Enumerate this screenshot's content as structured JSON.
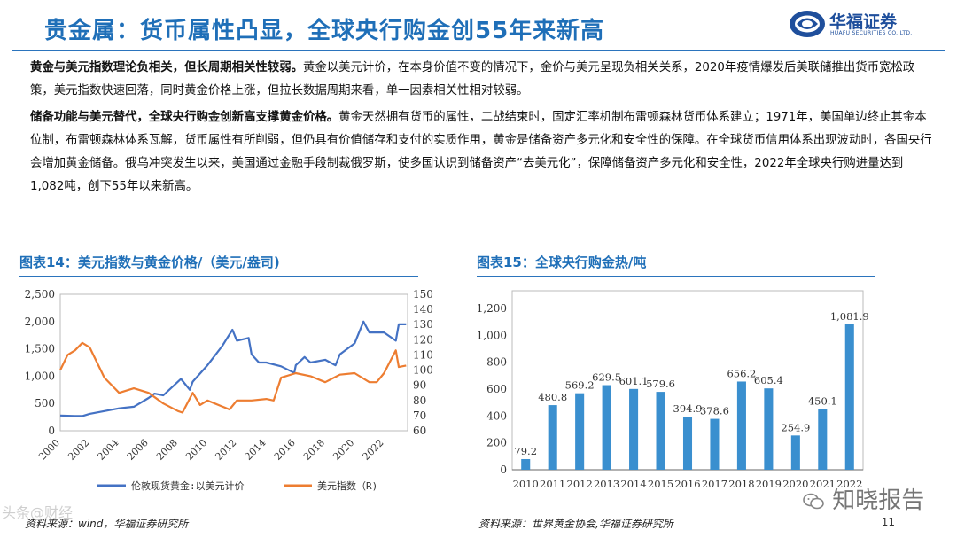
{
  "header": {
    "title": "贵金属：货币属性凸显，全球央行购金创55年来新高",
    "logo_text": "华福证券",
    "logo_sub": "HUAFU SECURITIES CO.,LTD."
  },
  "paragraphs": [
    {
      "lead": "黄金与美元指数理论负相关，但长周期相关性较弱。",
      "body": "黄金以美元计价，在本身价值不变的情况下，金价与美元呈现负相关关系，2020年疫情爆发后美联储推出货币宽松政策，美元指数快速回落，同时黄金价格上涨，但拉长数据周期来看，单一因素相关性相对较弱。"
    },
    {
      "lead": "储备功能与美元替代，全球央行购金创新高支撑黄金价格。",
      "body": "黄金天然拥有货币的属性，二战结束时，固定汇率机制布雷顿森林货币体系建立；1971年，美国单边终止其金本位制，布雷顿森林体系瓦解，货币属性有所削弱，但仍具有价值储存和支付的实质作用，黄金是储备资产多元化和安全性的保障。在全球货币信用体系出现波动时，各国央行会增加黄金储备。俄乌冲突发生以来，美国通过金融手段制裁俄罗斯，使多国认识到储备资产“去美元化”，保障储备资产多元化和安全性，2022年全球央行购进量达到1,082吨，创下55年以来新高。"
    }
  ],
  "chart_titles": {
    "left": "图表14：美元指数与黄金价格/（美元/盎司)",
    "right": "图表15：全球央行购金热/吨"
  },
  "sources": {
    "left": "资料来源：wind，华福证券研究所",
    "right": "资料来源：世界黄金协会,华福证券研究所"
  },
  "page_number": "11",
  "watermarks": {
    "left": "头条@财经",
    "right": "知晓报告"
  },
  "chart_data": [
    {
      "type": "line",
      "x_ticks": [
        "2000",
        "2002",
        "2004",
        "2006",
        "2008",
        "2010",
        "2012",
        "2014",
        "2016",
        "2018",
        "2020",
        "2022"
      ],
      "y_left_ticks": [
        "0",
        "500",
        "1,000",
        "1,500",
        "2,000",
        "2,500"
      ],
      "y_left_range": [
        0,
        2500
      ],
      "y_right_ticks": [
        "60",
        "70",
        "80",
        "90",
        "100",
        "110",
        "120",
        "130",
        "140",
        "150"
      ],
      "y_right_range": [
        60,
        150
      ],
      "x_range": [
        2000,
        2023.6
      ],
      "series": [
        {
          "name": "伦敦现货黄金:以美元计价",
          "axis": "left",
          "color": "#4472c4",
          "x": [
            2000,
            2001,
            2001.5,
            2002,
            2003,
            2004,
            2005,
            2006,
            2006.4,
            2007,
            2008,
            2008.2,
            2008.8,
            2009,
            2010,
            2011,
            2011.7,
            2012,
            2012.8,
            2013,
            2013.5,
            2014,
            2015,
            2015.9,
            2016,
            2016.6,
            2017,
            2018,
            2018.7,
            2019,
            2020,
            2020.6,
            2021,
            2022,
            2022.8,
            2023,
            2023.5
          ],
          "y": [
            280,
            270,
            270,
            310,
            360,
            410,
            440,
            600,
            680,
            650,
            900,
            950,
            750,
            900,
            1200,
            1550,
            1850,
            1650,
            1700,
            1400,
            1250,
            1250,
            1180,
            1060,
            1200,
            1350,
            1250,
            1300,
            1200,
            1400,
            1600,
            2000,
            1800,
            1800,
            1650,
            1950,
            1950
          ]
        },
        {
          "name": "美元指数（R)",
          "axis": "right",
          "color": "#ed7d31",
          "x": [
            2000,
            2000.5,
            2001,
            2001.5,
            2002,
            2002.5,
            2003,
            2004,
            2005,
            2006,
            2007,
            2008,
            2008.3,
            2009,
            2009.5,
            2010,
            2011,
            2011.5,
            2012,
            2013,
            2014,
            2014.5,
            2015,
            2016,
            2017,
            2018,
            2019,
            2020,
            2021,
            2021.5,
            2022,
            2022.8,
            2023,
            2023.5
          ],
          "y": [
            100,
            110,
            113,
            118,
            115,
            105,
            95,
            85,
            88,
            85,
            78,
            73,
            72,
            85,
            77,
            80,
            76,
            74,
            80,
            80,
            81,
            80,
            95,
            98,
            96,
            92,
            97,
            98,
            92,
            92,
            98,
            113,
            102,
            103
          ]
        }
      ]
    },
    {
      "type": "bar",
      "categories": [
        "2010",
        "2011",
        "2012",
        "2013",
        "2014",
        "2015",
        "2016",
        "2017",
        "2018",
        "2019",
        "2020",
        "2021",
        "2022"
      ],
      "values": [
        79.2,
        480.8,
        569.2,
        629.5,
        601.1,
        579.6,
        394.9,
        378.6,
        656.2,
        605.4,
        254.9,
        450.1,
        1081.9
      ],
      "value_labels": [
        "79.2",
        "480.8",
        "569.2",
        "629.5",
        "601.1",
        "579.6",
        "394.9",
        "378.6",
        "656.2",
        "605.4",
        "254.9",
        "450.1",
        "1,081.9"
      ],
      "y_ticks": [
        "0",
        "200",
        "400",
        "600",
        "800",
        "1,000",
        "1,200"
      ],
      "ylim": [
        0,
        1200
      ],
      "bar_color": "#3a8fcf"
    }
  ]
}
